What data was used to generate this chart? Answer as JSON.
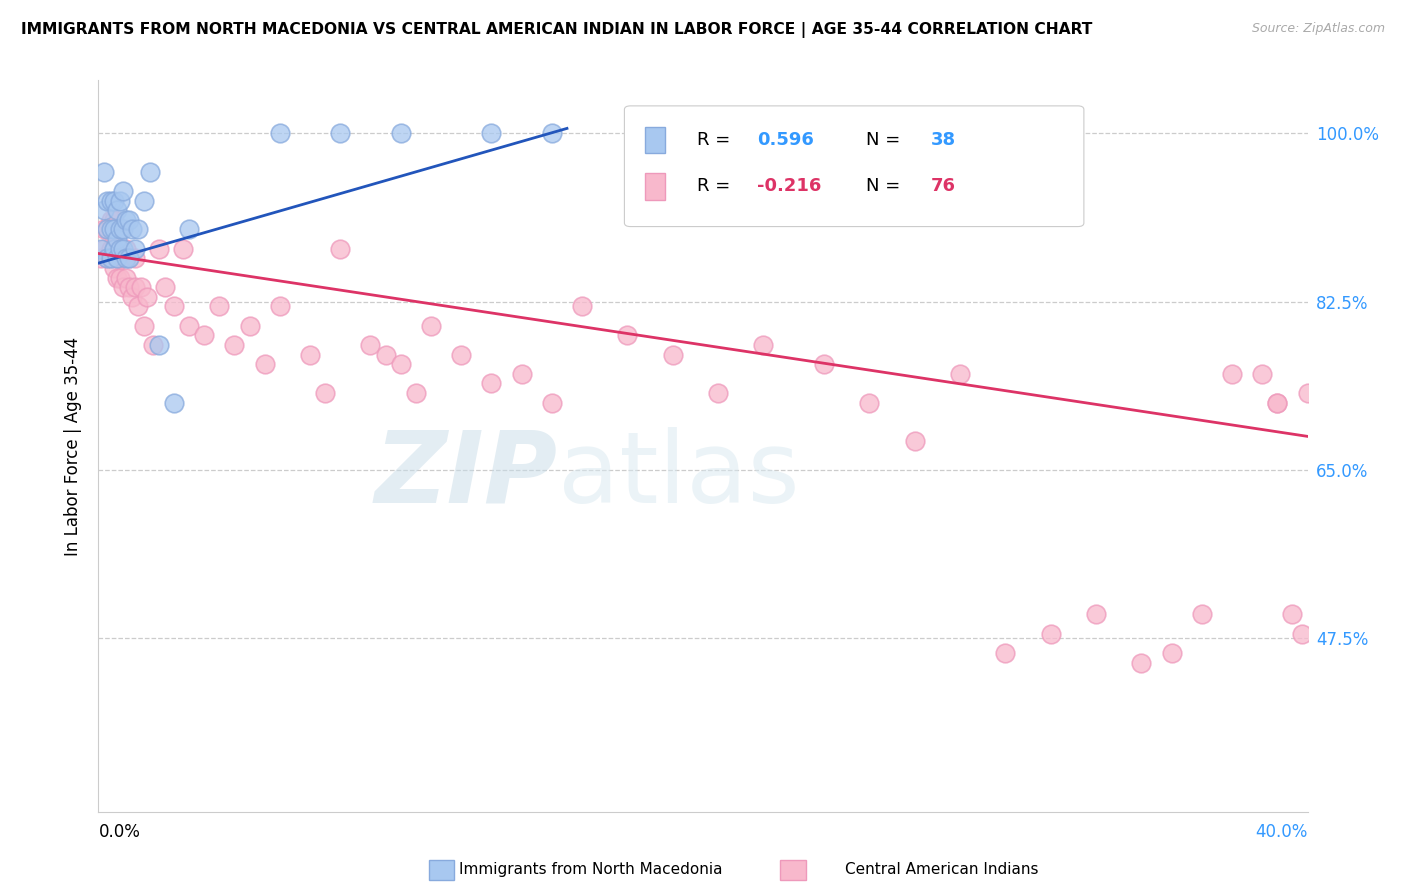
{
  "title": "IMMIGRANTS FROM NORTH MACEDONIA VS CENTRAL AMERICAN INDIAN IN LABOR FORCE | AGE 35-44 CORRELATION CHART",
  "source": "Source: ZipAtlas.com",
  "ylabel": "In Labor Force | Age 35-44",
  "ytick_labels": [
    "100.0%",
    "82.5%",
    "65.0%",
    "47.5%"
  ],
  "ytick_values": [
    1.0,
    0.825,
    0.65,
    0.475
  ],
  "xlim": [
    0.0,
    0.4
  ],
  "ylim": [
    0.295,
    1.055
  ],
  "blue_R": 0.596,
  "blue_N": 38,
  "pink_R": -0.216,
  "pink_N": 76,
  "blue_color": "#a8c8f0",
  "pink_color": "#f8b8cc",
  "blue_edge_color": "#88aadd",
  "pink_edge_color": "#ee99bb",
  "blue_line_color": "#2255bb",
  "pink_line_color": "#dd3366",
  "legend_blue_label": "Immigrants from North Macedonia",
  "legend_pink_label": "Central American Indians",
  "watermark_zip": "ZIP",
  "watermark_atlas": "atlas",
  "blue_line_x0": 0.0,
  "blue_line_x1": 0.155,
  "blue_line_y0": 0.865,
  "blue_line_y1": 1.005,
  "pink_line_x0": 0.0,
  "pink_line_x1": 0.4,
  "pink_line_y0": 0.875,
  "pink_line_y1": 0.685,
  "blue_x": [
    0.001,
    0.002,
    0.002,
    0.003,
    0.003,
    0.003,
    0.004,
    0.004,
    0.004,
    0.005,
    0.005,
    0.005,
    0.006,
    0.006,
    0.006,
    0.007,
    0.007,
    0.007,
    0.008,
    0.008,
    0.008,
    0.009,
    0.009,
    0.01,
    0.01,
    0.011,
    0.012,
    0.013,
    0.015,
    0.017,
    0.02,
    0.025,
    0.03,
    0.06,
    0.08,
    0.1,
    0.13,
    0.15
  ],
  "blue_y": [
    0.88,
    0.92,
    0.96,
    0.87,
    0.9,
    0.93,
    0.87,
    0.9,
    0.93,
    0.88,
    0.9,
    0.93,
    0.87,
    0.89,
    0.92,
    0.88,
    0.9,
    0.93,
    0.88,
    0.9,
    0.94,
    0.87,
    0.91,
    0.87,
    0.91,
    0.9,
    0.88,
    0.9,
    0.93,
    0.96,
    0.78,
    0.72,
    0.9,
    1.0,
    1.0,
    1.0,
    1.0,
    1.0
  ],
  "pink_x": [
    0.001,
    0.002,
    0.002,
    0.003,
    0.003,
    0.004,
    0.004,
    0.004,
    0.005,
    0.005,
    0.005,
    0.006,
    0.006,
    0.006,
    0.007,
    0.007,
    0.007,
    0.008,
    0.008,
    0.009,
    0.009,
    0.01,
    0.01,
    0.011,
    0.012,
    0.012,
    0.013,
    0.014,
    0.015,
    0.016,
    0.018,
    0.02,
    0.022,
    0.025,
    0.028,
    0.03,
    0.035,
    0.04,
    0.045,
    0.05,
    0.055,
    0.06,
    0.07,
    0.075,
    0.08,
    0.09,
    0.095,
    0.1,
    0.105,
    0.11,
    0.12,
    0.13,
    0.14,
    0.15,
    0.16,
    0.175,
    0.19,
    0.205,
    0.22,
    0.24,
    0.255,
    0.27,
    0.285,
    0.3,
    0.315,
    0.33,
    0.345,
    0.355,
    0.365,
    0.375,
    0.385,
    0.39,
    0.395,
    0.398,
    0.4,
    0.39
  ],
  "pink_y": [
    0.87,
    0.88,
    0.9,
    0.87,
    0.9,
    0.87,
    0.88,
    0.91,
    0.86,
    0.88,
    0.91,
    0.85,
    0.87,
    0.9,
    0.85,
    0.87,
    0.9,
    0.84,
    0.87,
    0.85,
    0.88,
    0.84,
    0.87,
    0.83,
    0.84,
    0.87,
    0.82,
    0.84,
    0.8,
    0.83,
    0.78,
    0.88,
    0.84,
    0.82,
    0.88,
    0.8,
    0.79,
    0.82,
    0.78,
    0.8,
    0.76,
    0.82,
    0.77,
    0.73,
    0.88,
    0.78,
    0.77,
    0.76,
    0.73,
    0.8,
    0.77,
    0.74,
    0.75,
    0.72,
    0.82,
    0.79,
    0.77,
    0.73,
    0.78,
    0.76,
    0.72,
    0.68,
    0.75,
    0.46,
    0.48,
    0.5,
    0.45,
    0.46,
    0.5,
    0.75,
    0.75,
    0.72,
    0.5,
    0.48,
    0.73,
    0.72
  ]
}
